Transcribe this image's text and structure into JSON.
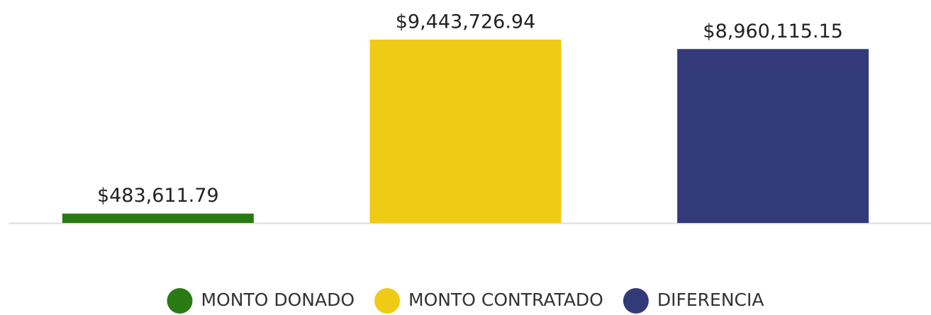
{
  "chart_data": {
    "type": "bar",
    "categories": [
      "MONTO DONADO",
      "MONTO CONTRATADO",
      "DIFERENCIA"
    ],
    "values": [
      483611.79,
      9443726.94,
      8960115.15
    ],
    "value_labels": [
      "$483,611.79",
      "$9,443,726.94",
      "$8,960,115.15"
    ],
    "colors": [
      "#2a7a14",
      "#efcb16",
      "#333a7a"
    ],
    "legend": "bottom"
  }
}
